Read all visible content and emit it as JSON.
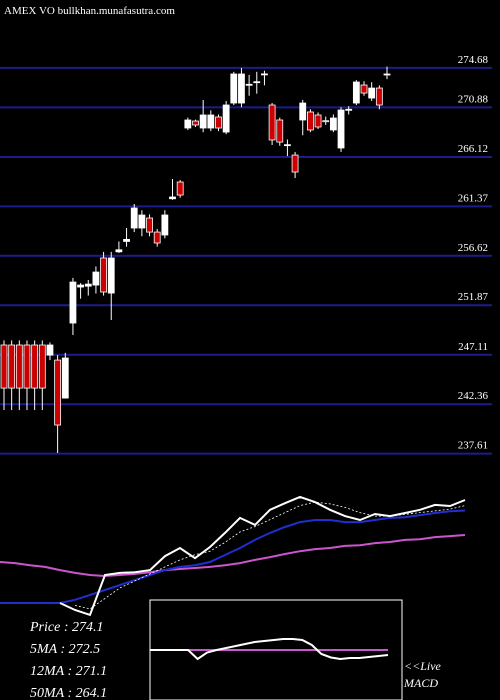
{
  "chart_data": {
    "type": "candlestick",
    "title": "AMEX VO bullkhan.munafasutra.com",
    "ylim": [
      237.0,
      281.2
    ],
    "yticks": [
      274.68,
      270.88,
      266.12,
      261.37,
      256.62,
      251.87,
      247.11,
      242.36,
      237.61
    ],
    "grid": true,
    "up_color": "#000000",
    "down_color": "#cc0000",
    "open": [
      248.05,
      248.05,
      248.05,
      248.05,
      248.05,
      248.05,
      247.08,
      246.6,
      242.95,
      250.16,
      253.62,
      253.7,
      253.81,
      256.41,
      253.04,
      257.0,
      258.0,
      259.29,
      259.29,
      260.25,
      258.9,
      258.62,
      262.1,
      263.71,
      268.9,
      269.57,
      268.9,
      268.9,
      269.96,
      268.51,
      271.3,
      271.3,
      273.03,
      273.3,
      274.09,
      271.11,
      269.67,
      267.27,
      266.3,
      269.67,
      270.44,
      270.15,
      269.6,
      268.71,
      266.98,
      270.6,
      271.3,
      273.03,
      271.78,
      272.74,
      274.0
    ],
    "high": [
      248.49,
      248.49,
      248.49,
      248.49,
      248.49,
      248.49,
      248.3,
      247.08,
      247.3,
      254.5,
      254.0,
      254.3,
      255.6,
      257.0,
      257.0,
      258.0,
      259.3,
      261.6,
      261.0,
      260.6,
      259.2,
      261.0,
      264.0,
      263.9,
      269.9,
      269.7,
      271.59,
      270.6,
      270.2,
      271.5,
      274.3,
      274.67,
      274.0,
      274.3,
      274.4,
      271.3,
      269.9,
      267.8,
      266.6,
      271.6,
      270.7,
      270.4,
      270.0,
      270.2,
      270.9,
      271.0,
      273.5,
      273.4,
      273.3,
      273.0,
      274.8
    ],
    "low": [
      241.8,
      241.8,
      241.8,
      241.8,
      241.8,
      241.8,
      246.6,
      237.67,
      242.9,
      249.01,
      252.5,
      252.8,
      253.0,
      252.8,
      250.45,
      256.9,
      257.5,
      258.9,
      258.5,
      258.5,
      257.5,
      258.3,
      262.0,
      262.2,
      268.7,
      269.0,
      268.5,
      268.6,
      268.6,
      268.3,
      271.1,
      270.9,
      272.0,
      272.2,
      273.0,
      267.27,
      267.2,
      266.2,
      264.09,
      268.2,
      268.5,
      268.8,
      269.2,
      268.5,
      266.6,
      270.2,
      271.1,
      272.0,
      271.5,
      270.7,
      273.6
    ],
    "close": [
      243.91,
      243.91,
      243.91,
      243.91,
      243.91,
      243.91,
      248.05,
      240.36,
      246.8,
      254.1,
      253.81,
      253.9,
      255.06,
      253.14,
      256.41,
      257.2,
      258.2,
      261.21,
      260.54,
      258.9,
      257.85,
      260.54,
      262.27,
      262.46,
      269.67,
      269.19,
      270.15,
      270.15,
      268.9,
      271.11,
      274.09,
      274.09,
      273.1,
      273.35,
      274.1,
      267.75,
      267.55,
      267.3,
      264.67,
      271.3,
      268.71,
      269.0,
      269.57,
      269.86,
      270.63,
      270.7,
      273.32,
      272.26,
      272.74,
      271.11,
      274.09
    ],
    "overlay": {
      "ylim": [
        217.0,
        284.1
      ],
      "series": [
        {
          "name": "50MA",
          "color": "#cc55cc",
          "values": [
            256.4,
            256.1,
            255.5,
            255.0,
            254.1,
            253.3,
            252.7,
            252.4,
            252.7,
            253.0,
            253.5,
            254.1,
            254.4,
            254.7,
            255.0,
            255.5,
            256.1,
            257.0,
            257.8,
            258.7,
            259.5,
            260.1,
            260.4,
            261.0,
            261.2,
            261.8,
            262.1,
            262.7,
            262.9,
            263.5,
            263.8,
            264.1
          ]
        },
        {
          "name": "12MA",
          "color": "#1f2fd0",
          "values": [
            244.7,
            244.7,
            244.7,
            244.7,
            244.7,
            245.6,
            247.0,
            248.4,
            249.8,
            251.3,
            252.7,
            254.1,
            255.0,
            255.5,
            256.4,
            258.4,
            260.4,
            262.7,
            264.7,
            266.4,
            267.8,
            268.4,
            268.4,
            267.8,
            267.8,
            268.4,
            269.0,
            269.2,
            269.8,
            270.4,
            270.9,
            271.1
          ]
        },
        {
          "name": "5MA",
          "color": "#ffffff",
          "dashed": true,
          "values": [
            null,
            null,
            null,
            null,
            null,
            244,
            243,
            246,
            249,
            251,
            253,
            255,
            257,
            258.5,
            259.5,
            262,
            265,
            266.5,
            268.5,
            270.5,
            272.5,
            273.5,
            273,
            272,
            270.5,
            269.5,
            269.5,
            270,
            270.5,
            271,
            271.5,
            272.5
          ]
        },
        {
          "name": "Price",
          "color": "#ffffff",
          "values": [
            null,
            null,
            null,
            null,
            244.7,
            242.7,
            241.3,
            252.7,
            253.3,
            253.5,
            254.1,
            258.1,
            260.4,
            257.5,
            260.7,
            264.7,
            269.0,
            267.0,
            271.3,
            273.2,
            275.0,
            273.5,
            271.3,
            269.5,
            268.4,
            270.1,
            269.5,
            270.4,
            271.3,
            272.7,
            272.4,
            274.1
          ]
        }
      ]
    },
    "macd": {
      "ylim": [
        -10,
        10
      ],
      "signal": {
        "color": "#cc55cc",
        "values": [
          0,
          0,
          0,
          0,
          0,
          0,
          0,
          0,
          0,
          0,
          0,
          0,
          0,
          0,
          0,
          0,
          0,
          0,
          0,
          0,
          0,
          0,
          0,
          0,
          0,
          0
        ]
      },
      "line": {
        "color": "#ffffff",
        "values": [
          0,
          0,
          0,
          0,
          0,
          -1.8,
          -0.5,
          0,
          0.4,
          0.8,
          1.2,
          1.6,
          1.8,
          2.0,
          2.2,
          2.2,
          2.0,
          1.0,
          -0.8,
          -1.5,
          -1.8,
          -1.6,
          -1.6,
          -1.4,
          -1.2,
          -1.0
        ]
      }
    },
    "legend": [
      "Price  : 274.1",
      "5MA  : 272.5",
      "12MA : 271.1",
      "50MA : 264.1"
    ],
    "macd_label": [
      "<<Live",
      "MACD"
    ]
  }
}
